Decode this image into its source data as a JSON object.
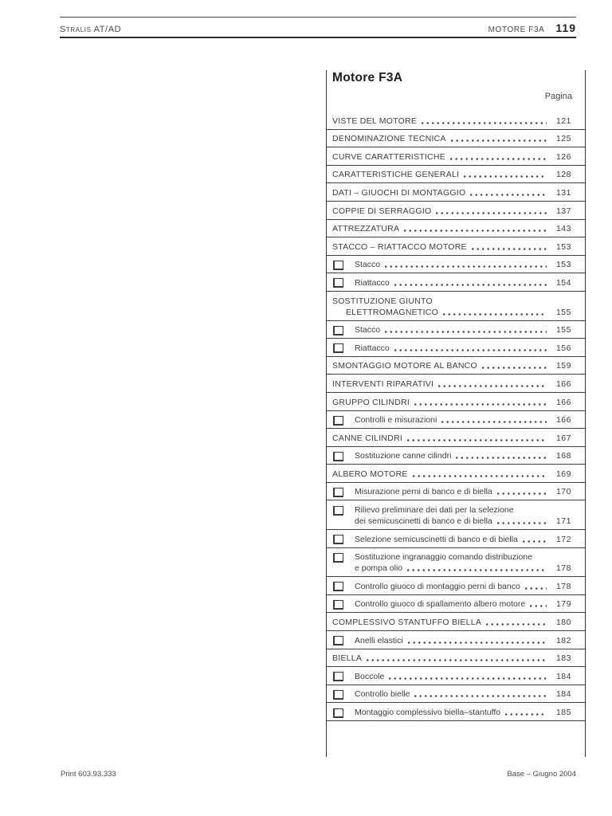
{
  "header": {
    "left": "Stralis AT/AD",
    "section": "MOTORE F3A",
    "page_number": "119"
  },
  "colors": {
    "text": "#3f3f3f",
    "rule_dark": "#2b2b2b",
    "rule_light": "#4c4c4c",
    "background": "#fefefe"
  },
  "toc": {
    "title": "Motore F3A",
    "page_col_label": "Pagina",
    "entries": [
      {
        "level": "main",
        "text": "VISTE DEL MOTORE",
        "page": "121"
      },
      {
        "level": "main",
        "text": "DENOMINAZIONE TECNICA",
        "page": "125"
      },
      {
        "level": "main",
        "text": "CURVE CARATTERISTICHE",
        "page": "126"
      },
      {
        "level": "main",
        "text": "CARATTERISTICHE GENERALI",
        "page": "128"
      },
      {
        "level": "main",
        "text": "DATI – GIUOCHI DI MONTAGGIO",
        "page": "131"
      },
      {
        "level": "main",
        "text": "COPPIE DI SERRAGGIO",
        "page": "137"
      },
      {
        "level": "main",
        "text": "ATTREZZATURA",
        "page": "143"
      },
      {
        "level": "main",
        "text": "STACCO – RIATTACCO MOTORE",
        "page": "153"
      },
      {
        "level": "sub",
        "text": "Stacco",
        "page": "153"
      },
      {
        "level": "sub",
        "text": "Riattacco",
        "page": "154"
      },
      {
        "level": "main",
        "text": "SOSTITUZIONE GIUNTO",
        "text2": "ELETTROMAGNETICO",
        "page": "155"
      },
      {
        "level": "sub",
        "text": "Stacco",
        "page": "155"
      },
      {
        "level": "sub",
        "text": "Riattacco",
        "page": "156"
      },
      {
        "level": "main",
        "text": "SMONTAGGIO MOTORE AL BANCO",
        "page": "159"
      },
      {
        "level": "main",
        "text": "INTERVENTI RIPARATIVI",
        "page": "166"
      },
      {
        "level": "main",
        "text": "GRUPPO CILINDRI",
        "page": "166"
      },
      {
        "level": "sub",
        "text": "Controlli e misurazioni",
        "page": "166"
      },
      {
        "level": "main",
        "text": "CANNE CILINDRI",
        "page": "167"
      },
      {
        "level": "sub",
        "text": "Sostituzione canne cilindri",
        "page": "168"
      },
      {
        "level": "main",
        "text": "ALBERO MOTORE",
        "page": "169"
      },
      {
        "level": "sub",
        "text": "Misurazione perni di banco e di biella",
        "page": "170"
      },
      {
        "level": "sub",
        "text": "Rilievo preliminare dei dati per la selezione",
        "text2": "dei semicuscinetti di banco e di biella",
        "page": "171"
      },
      {
        "level": "sub",
        "text": "Selezione semicuscinetti di banco e di biella",
        "page": "172"
      },
      {
        "level": "sub",
        "text": "Sostituzione ingranaggio comando distribuzione",
        "text2": "e pompa olio",
        "page": "178"
      },
      {
        "level": "sub",
        "text": "Controllo giuoco di montaggio perni di banco",
        "page": "178"
      },
      {
        "level": "sub",
        "text": "Controllo giuoco di spallamento albero motore",
        "page": "179"
      },
      {
        "level": "main",
        "text": "COMPLESSIVO STANTUFFO BIELLA",
        "page": "180"
      },
      {
        "level": "sub",
        "text": "Anelli elastici",
        "page": "182"
      },
      {
        "level": "main",
        "text": "BIELLA",
        "page": "183"
      },
      {
        "level": "sub",
        "text": "Boccole",
        "page": "184"
      },
      {
        "level": "sub",
        "text": "Controllo bielle",
        "page": "184"
      },
      {
        "level": "sub",
        "text": "Montaggio complessivo biella–stantuffo",
        "page": "185"
      }
    ]
  },
  "footer": {
    "left": "Print 603.93.333",
    "right": "Base – Giugno 2004"
  }
}
